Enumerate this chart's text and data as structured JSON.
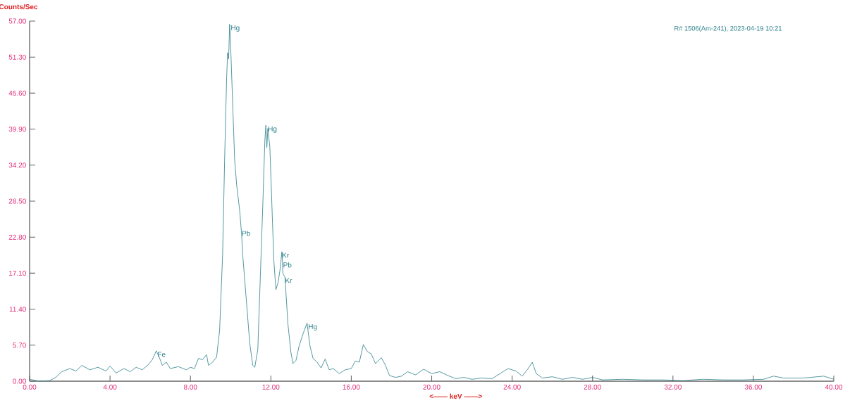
{
  "chart_data": {
    "type": "line",
    "xlabel": "<—— keV ——>",
    "ylabel": "Counts/Sec",
    "xlim": [
      0,
      40
    ],
    "ylim": [
      0,
      57
    ],
    "xticks": [
      {
        "value": 0,
        "label": "0.00"
      },
      {
        "value": 4,
        "label": "4.00"
      },
      {
        "value": 8,
        "label": "8.00"
      },
      {
        "value": 12,
        "label": "12.00"
      },
      {
        "value": 16,
        "label": "16.00"
      },
      {
        "value": 20,
        "label": "20.00"
      },
      {
        "value": 24,
        "label": "24.00"
      },
      {
        "value": 28,
        "label": "28.00"
      },
      {
        "value": 32,
        "label": "32.00"
      },
      {
        "value": 36,
        "label": "36.00"
      },
      {
        "value": 40,
        "label": "40.00"
      }
    ],
    "yticks": [
      {
        "value": 0,
        "label": "0.00"
      },
      {
        "value": 5.7,
        "label": "5.70"
      },
      {
        "value": 11.4,
        "label": "11.40"
      },
      {
        "value": 17.1,
        "label": "17.10"
      },
      {
        "value": 22.8,
        "label": "22.80"
      },
      {
        "value": 28.5,
        "label": "28.50"
      },
      {
        "value": 34.2,
        "label": "34.20"
      },
      {
        "value": 39.9,
        "label": "39.90"
      },
      {
        "value": 45.6,
        "label": "45.60"
      },
      {
        "value": 51.3,
        "label": "51.30"
      },
      {
        "value": 57,
        "label": "57.00"
      }
    ],
    "grid": false,
    "annotations": [
      {
        "text": "R# 1506(Am-241), 2023-04-19 10:21"
      },
      {
        "text": "Hg",
        "x": 9.95,
        "y": 56.5
      },
      {
        "text": "Pb",
        "x": 10.5,
        "y": 24
      },
      {
        "text": "Hg",
        "x": 11.8,
        "y": 40.5
      },
      {
        "text": "Kr",
        "x": 12.5,
        "y": 20.5
      },
      {
        "text": "Pb",
        "x": 12.55,
        "y": 19
      },
      {
        "text": "Kr",
        "x": 12.65,
        "y": 16.5
      },
      {
        "text": "Hg",
        "x": 13.8,
        "y": 9.2
      },
      {
        "text": "Fe",
        "x": 6.3,
        "y": 4.8
      }
    ],
    "series": [
      {
        "color": "#2a7f8a",
        "x": [
          0,
          0.5,
          1.0,
          1.3,
          1.6,
          2.0,
          2.3,
          2.6,
          3.0,
          3.4,
          3.8,
          4.0,
          4.3,
          4.7,
          5.0,
          5.3,
          5.6,
          5.9,
          6.1,
          6.3,
          6.45,
          6.6,
          6.8,
          7.0,
          7.4,
          7.8,
          8.0,
          8.2,
          8.4,
          8.6,
          8.8,
          8.9,
          9.1,
          9.3,
          9.45,
          9.6,
          9.7,
          9.8,
          9.85,
          9.9,
          9.95,
          10.0,
          10.1,
          10.2,
          10.3,
          10.45,
          10.55,
          10.6,
          10.8,
          10.95,
          11.1,
          11.2,
          11.35,
          11.6,
          11.7,
          11.75,
          11.8,
          11.85,
          11.95,
          12.05,
          12.15,
          12.25,
          12.35,
          12.45,
          12.55,
          12.6,
          12.7,
          12.85,
          13.0,
          13.1,
          13.25,
          13.4,
          13.6,
          13.8,
          13.95,
          14.1,
          14.3,
          14.5,
          14.7,
          14.9,
          15.1,
          15.4,
          15.7,
          16.0,
          16.2,
          16.4,
          16.6,
          16.8,
          17.0,
          17.2,
          17.5,
          17.7,
          17.9,
          18.2,
          18.5,
          18.8,
          19.2,
          19.6,
          20.0,
          20.4,
          20.8,
          21.2,
          21.6,
          22.0,
          22.5,
          23.0,
          23.4,
          23.8,
          24.2,
          24.5,
          24.8,
          25.0,
          25.2,
          25.5,
          26.0,
          26.5,
          27.0,
          27.5,
          28.0,
          28.5,
          29.5,
          30.5,
          31.5,
          32.5,
          33.5,
          34.5,
          35.5,
          36.5,
          37.0,
          37.5,
          38.5,
          39.5,
          40.0
        ],
        "values": [
          0.3,
          0,
          0.1,
          0.6,
          1.5,
          2.0,
          1.6,
          2.5,
          1.8,
          2.2,
          1.6,
          2.4,
          1.3,
          2.0,
          1.5,
          2.2,
          1.8,
          2.6,
          3.4,
          4.8,
          3.8,
          2.5,
          3.0,
          2.0,
          2.3,
          1.8,
          2.2,
          2.0,
          3.6,
          3.4,
          4.2,
          2.5,
          3.0,
          3.8,
          8,
          20,
          35,
          48,
          52,
          51,
          56.5,
          53,
          44,
          35,
          31,
          27,
          23,
          20,
          12,
          6,
          2.5,
          2.2,
          5,
          28,
          38,
          40.5,
          37,
          40,
          37,
          28,
          19,
          14.5,
          15.5,
          17.5,
          20.5,
          17,
          16.5,
          9,
          4.5,
          2.8,
          3.3,
          5.5,
          7.5,
          9.2,
          5.5,
          3.6,
          3.0,
          2.1,
          3.5,
          1.8,
          2.0,
          1.2,
          1.8,
          2.0,
          3.2,
          3.0,
          5.8,
          4.7,
          4.3,
          2.8,
          3.7,
          2.5,
          0.9,
          0.6,
          0.8,
          1.5,
          1.0,
          1.9,
          1.2,
          1.5,
          0.9,
          0.4,
          0.6,
          0.3,
          0.5,
          0.4,
          1.2,
          2.0,
          1.6,
          0.8,
          2.0,
          3.0,
          1.2,
          0.5,
          0.7,
          0.3,
          0.6,
          0.3,
          0.6,
          0.2,
          0.3,
          0.2,
          0.2,
          0.1,
          0.3,
          0.2,
          0.2,
          0.3,
          0.8,
          0.5,
          0.5,
          0.8,
          0.3
        ]
      }
    ]
  }
}
